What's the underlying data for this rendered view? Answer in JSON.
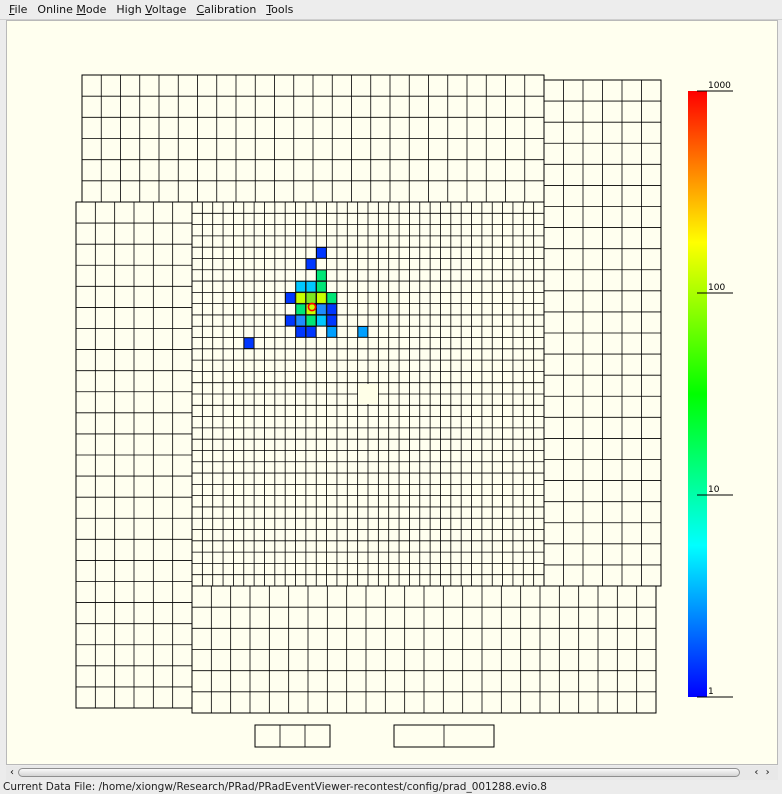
{
  "menubar": {
    "items": [
      {
        "label": "File",
        "mnemonic_index": 0
      },
      {
        "label": "Online Mode",
        "mnemonic_index": 7
      },
      {
        "label": "High Voltage",
        "mnemonic_index": 5
      },
      {
        "label": "Calibration",
        "mnemonic_index": 0
      },
      {
        "label": "Tools",
        "mnemonic_index": 0
      }
    ]
  },
  "color_scale": {
    "tick_labels": [
      "1000",
      "100",
      "10",
      "1"
    ],
    "scale": "log",
    "min": 1,
    "max": 1000,
    "gradient_colors": [
      "#0000ff",
      "#00ffff",
      "#00ff00",
      "#ffff00",
      "#ff0000"
    ]
  },
  "calorimeter": {
    "background_color": "#ffffef",
    "grid_color": "#000000",
    "central_hole_color": "#ffffe8",
    "cluster_marker_color": "#ff0000",
    "hits_description": "energy deposits shown as coloured modules",
    "hit_colors": [
      "#0037ff",
      "#1e8cff",
      "#00c8ff",
      "#00e676",
      "#7de61e",
      "#c8ff00",
      "#00a0ff"
    ]
  },
  "scrollbar": {
    "left_arrow": "‹",
    "right_arrows": "‹ ›"
  },
  "status": {
    "text": "Current Data File: /home/xiongw/Research/PRad/PRadEventViewer-recontest/config/prad_001288.evio.8"
  }
}
